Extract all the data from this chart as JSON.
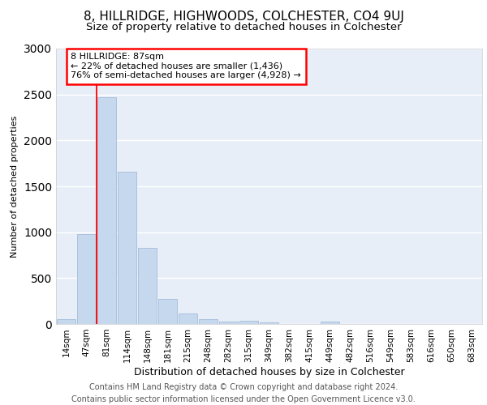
{
  "title1": "8, HILLRIDGE, HIGHWOODS, COLCHESTER, CO4 9UJ",
  "title2": "Size of property relative to detached houses in Colchester",
  "xlabel": "Distribution of detached houses by size in Colchester",
  "ylabel": "Number of detached properties",
  "categories": [
    "14sqm",
    "47sqm",
    "81sqm",
    "114sqm",
    "148sqm",
    "181sqm",
    "215sqm",
    "248sqm",
    "282sqm",
    "315sqm",
    "349sqm",
    "382sqm",
    "415sqm",
    "449sqm",
    "482sqm",
    "516sqm",
    "549sqm",
    "583sqm",
    "616sqm",
    "650sqm",
    "683sqm"
  ],
  "values": [
    50,
    980,
    2470,
    1660,
    830,
    270,
    115,
    50,
    30,
    35,
    20,
    0,
    0,
    30,
    0,
    0,
    0,
    0,
    0,
    0,
    0
  ],
  "bar_color": "#c5d8ee",
  "bar_edge_color": "#9ab5d4",
  "red_line_x": 1.5,
  "annotation_text": "8 HILLRIDGE: 87sqm\n← 22% of detached houses are smaller (1,436)\n76% of semi-detached houses are larger (4,928) →",
  "annotation_box_facecolor": "white",
  "annotation_box_edgecolor": "red",
  "ylim_max": 3000,
  "yticks": [
    0,
    500,
    1000,
    1500,
    2000,
    2500,
    3000
  ],
  "footer1": "Contains HM Land Registry data © Crown copyright and database right 2024.",
  "footer2": "Contains public sector information licensed under the Open Government Licence v3.0.",
  "bg_color": "#e8eef8",
  "grid_color": "#ffffff",
  "title1_fontsize": 11,
  "title2_fontsize": 9.5,
  "xlabel_fontsize": 9,
  "ylabel_fontsize": 8,
  "tick_fontsize": 7.5,
  "annot_fontsize": 8,
  "footer_fontsize": 7
}
